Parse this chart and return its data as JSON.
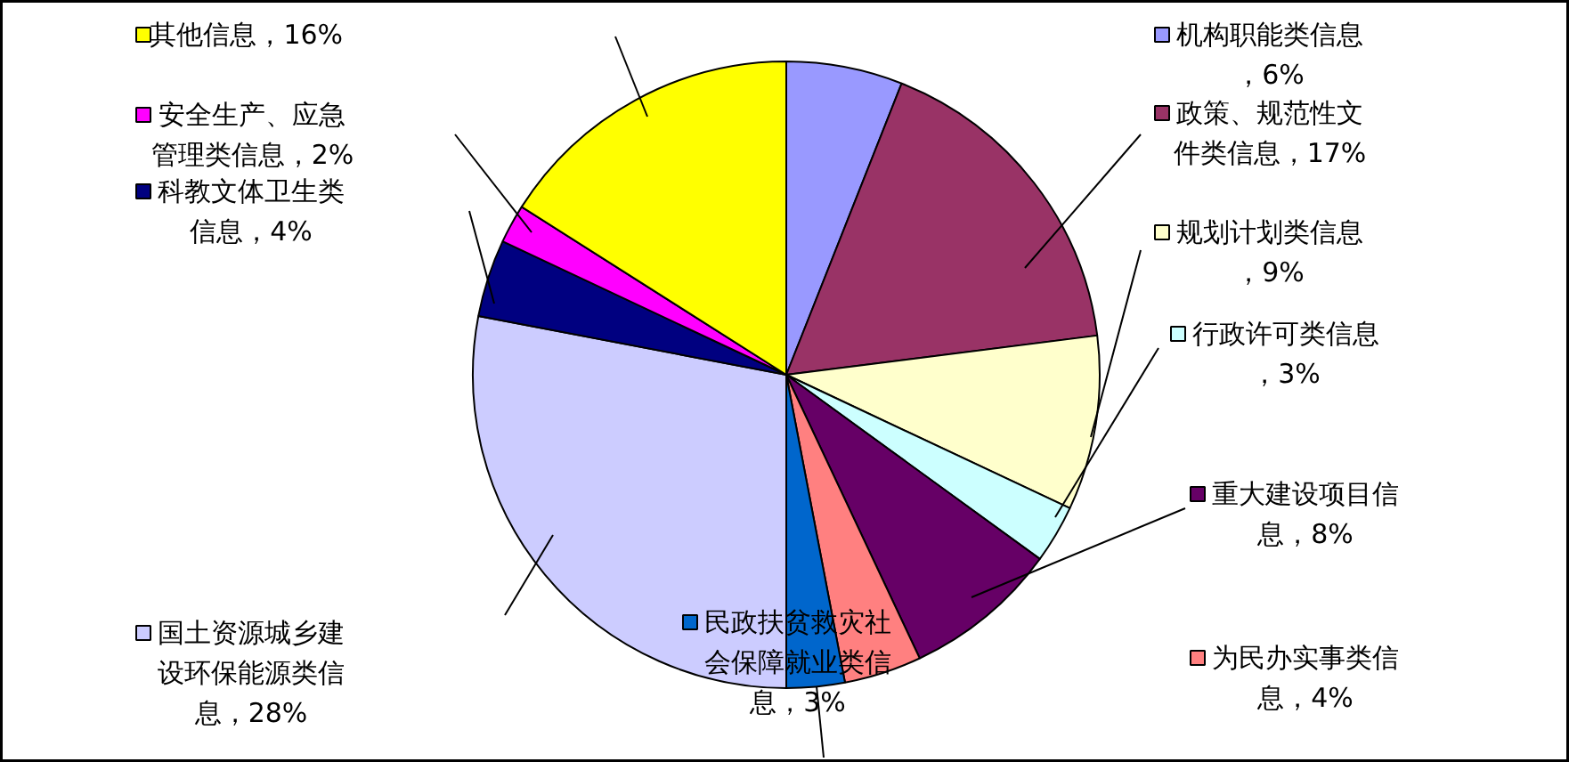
{
  "chart_data": {
    "type": "pie",
    "categories": [
      "机构职能类信息",
      "政策、规范性文件类信息",
      "规划计划类信息",
      "行政许可类信息",
      "重大建设项目信息",
      "为民办实事类信息",
      "民政扶贫救灾社会保障就业类信息",
      "国土资源城乡建设环保能源类信息",
      "科教文体卫生类信息",
      "安全生产、应急管理类信息",
      "其他信息"
    ],
    "values": [
      6,
      17,
      9,
      3,
      8,
      4,
      3,
      28,
      4,
      2,
      16
    ],
    "colors": [
      "#9999ff",
      "#993366",
      "#ffffcc",
      "#ccffff",
      "#660066",
      "#ff8080",
      "#0066cc",
      "#ccccff",
      "#000080",
      "#ff00ff",
      "#ffff00"
    ],
    "legend": "right",
    "value_labels": [
      "，6%",
      "，17%",
      "，9%",
      "，3%",
      "，8%",
      "，4%",
      "，3%",
      "，28%",
      "，4%",
      "，2%",
      "，16%"
    ]
  }
}
